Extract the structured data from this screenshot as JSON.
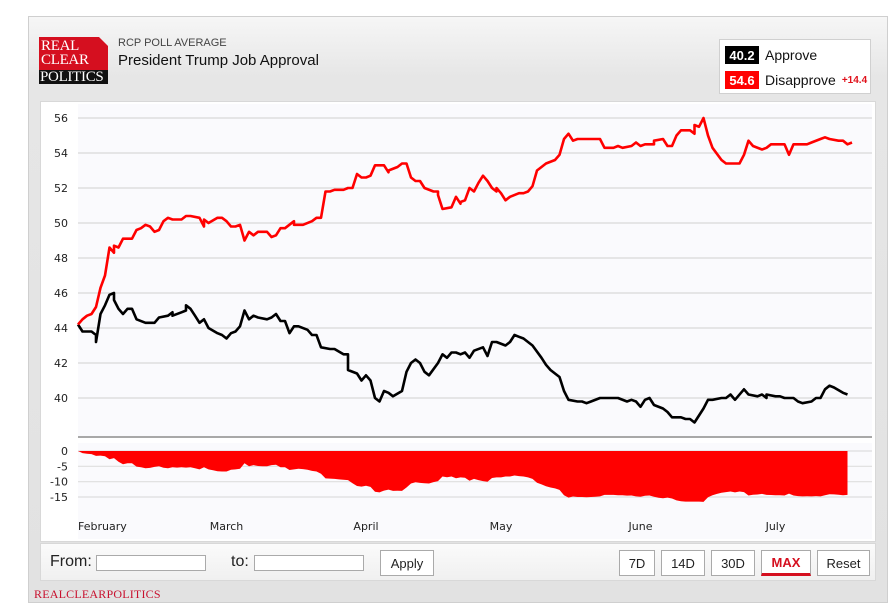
{
  "header": {
    "logo_lines": [
      "REAL",
      "CLEAR",
      "POLITICS"
    ],
    "kicker": "RCP POLL AVERAGE",
    "title": "President Trump Job Approval"
  },
  "legend": {
    "approve": {
      "value": "40.2",
      "label": "Approve",
      "color": "#000000"
    },
    "disapprove": {
      "value": "54.6",
      "label": "Disapprove",
      "color": "#ff0000"
    },
    "spread": "+14.4"
  },
  "controls": {
    "from_label": "From:",
    "from_value": "",
    "to_label": "to:",
    "to_value": "",
    "apply": "Apply",
    "ranges": [
      "7D",
      "14D",
      "30D",
      "MAX"
    ],
    "active_range": "MAX",
    "reset": "Reset"
  },
  "footer": "REALCLEARPOLITICS",
  "chart_data": {
    "type": "line",
    "title": "President Trump Job Approval",
    "x_unit": "days since first data point",
    "xlim": [
      0,
      172
    ],
    "x_ticks": [
      {
        "day": 5,
        "label": "February"
      },
      {
        "day": 33,
        "label": "March"
      },
      {
        "day": 64,
        "label": "April"
      },
      {
        "day": 94,
        "label": "May"
      },
      {
        "day": 125,
        "label": "June"
      },
      {
        "day": 155,
        "label": "July"
      }
    ],
    "main": {
      "ylim": [
        38,
        56.6
      ],
      "y_ticks": [
        56,
        54,
        52,
        50,
        48,
        46,
        44,
        42,
        40
      ],
      "grid": true
    },
    "spread_panel": {
      "ylim": [
        -18,
        0
      ],
      "y_ticks": [
        0,
        -5,
        -10,
        -15
      ],
      "color": "#ff0000"
    },
    "series": [
      {
        "name": "Approve",
        "color": "#000000",
        "points": [
          [
            0,
            44.2
          ],
          [
            1,
            43.8
          ],
          [
            3,
            43.8
          ],
          [
            4,
            43.6
          ],
          [
            4,
            43.2
          ],
          [
            5,
            44.8
          ],
          [
            6,
            45.3
          ],
          [
            7,
            45.9
          ],
          [
            8,
            46.0
          ],
          [
            8,
            45.6
          ],
          [
            9,
            45.1
          ],
          [
            10,
            44.8
          ],
          [
            11,
            45.1
          ],
          [
            12,
            45.1
          ],
          [
            13,
            44.5
          ],
          [
            15,
            44.3
          ],
          [
            17,
            44.3
          ],
          [
            18,
            44.6
          ],
          [
            20,
            44.7
          ],
          [
            21,
            44.9
          ],
          [
            21,
            44.7
          ],
          [
            23,
            44.9
          ],
          [
            24,
            45.0
          ],
          [
            24,
            45.3
          ],
          [
            25,
            45.1
          ],
          [
            26,
            44.7
          ],
          [
            27,
            44.3
          ],
          [
            28,
            44.5
          ],
          [
            29,
            44.0
          ],
          [
            31,
            43.7
          ],
          [
            32,
            43.6
          ],
          [
            33,
            43.4
          ],
          [
            34,
            43.7
          ],
          [
            35,
            43.8
          ],
          [
            36,
            44.1
          ],
          [
            37,
            45.0
          ],
          [
            38,
            44.5
          ],
          [
            39,
            44.7
          ],
          [
            40,
            44.6
          ],
          [
            42,
            44.5
          ],
          [
            43,
            44.6
          ],
          [
            44,
            44.8
          ],
          [
            45,
            44.4
          ],
          [
            46,
            44.4
          ],
          [
            47,
            43.7
          ],
          [
            48,
            44.1
          ],
          [
            49,
            44.1
          ],
          [
            51,
            43.9
          ],
          [
            52,
            43.6
          ],
          [
            53,
            43.6
          ],
          [
            54,
            42.9
          ],
          [
            56,
            42.8
          ],
          [
            57,
            42.8
          ],
          [
            59,
            42.5
          ],
          [
            60,
            42.5
          ],
          [
            60,
            41.6
          ],
          [
            62,
            41.4
          ],
          [
            63,
            41.0
          ],
          [
            64,
            41.3
          ],
          [
            65,
            41.0
          ],
          [
            66,
            40.0
          ],
          [
            67,
            39.8
          ],
          [
            68,
            40.4
          ],
          [
            69,
            40.3
          ],
          [
            70,
            40.1
          ],
          [
            72,
            40.4
          ],
          [
            72,
            40.4
          ],
          [
            73,
            41.5
          ],
          [
            74,
            42.0
          ],
          [
            75,
            42.2
          ],
          [
            76,
            42.0
          ],
          [
            77,
            41.5
          ],
          [
            78,
            41.3
          ],
          [
            80,
            42.0
          ],
          [
            81,
            42.5
          ],
          [
            82,
            42.3
          ],
          [
            83,
            42.6
          ],
          [
            84,
            42.6
          ],
          [
            85,
            42.5
          ],
          [
            86,
            42.6
          ],
          [
            87,
            42.3
          ],
          [
            88,
            42.7
          ],
          [
            90,
            42.9
          ],
          [
            91,
            42.4
          ],
          [
            92,
            43.2
          ],
          [
            93,
            43.2
          ],
          [
            95,
            43.0
          ],
          [
            96,
            43.2
          ],
          [
            97,
            43.6
          ],
          [
            98,
            43.5
          ],
          [
            99,
            43.4
          ],
          [
            100,
            43.2
          ],
          [
            101,
            43.0
          ],
          [
            103,
            42.3
          ],
          [
            104,
            41.9
          ],
          [
            105,
            41.6
          ],
          [
            107,
            41.2
          ],
          [
            108,
            40.4
          ],
          [
            109,
            39.9
          ],
          [
            111,
            39.8
          ],
          [
            112,
            39.8
          ],
          [
            113,
            39.7
          ],
          [
            114,
            39.8
          ],
          [
            116,
            40.0
          ],
          [
            117,
            40.0
          ],
          [
            119,
            40.0
          ],
          [
            120,
            40.0
          ],
          [
            122,
            39.8
          ],
          [
            123,
            39.9
          ],
          [
            124,
            39.8
          ],
          [
            125,
            39.5
          ],
          [
            126,
            39.9
          ],
          [
            127,
            40.0
          ],
          [
            128,
            39.6
          ],
          [
            130,
            39.4
          ],
          [
            131,
            39.2
          ],
          [
            132,
            38.9
          ],
          [
            134,
            38.9
          ],
          [
            135,
            38.8
          ],
          [
            136,
            38.8
          ],
          [
            137,
            38.6
          ],
          [
            139,
            39.4
          ],
          [
            140,
            39.9
          ],
          [
            141,
            39.9
          ],
          [
            143,
            40.0
          ],
          [
            144,
            40.0
          ],
          [
            145,
            40.2
          ],
          [
            146,
            39.9
          ],
          [
            148,
            40.5
          ],
          [
            149,
            40.2
          ],
          [
            151,
            40.1
          ],
          [
            152,
            40.2
          ],
          [
            153,
            40.0
          ],
          [
            153,
            40.2
          ],
          [
            155,
            40.1
          ],
          [
            156,
            40.1
          ],
          [
            157,
            40.0
          ],
          [
            159,
            40.0
          ],
          [
            160,
            39.8
          ],
          [
            161,
            39.7
          ],
          [
            163,
            39.8
          ],
          [
            164,
            40.0
          ],
          [
            165,
            40.0
          ],
          [
            166,
            40.5
          ],
          [
            167,
            40.7
          ],
          [
            168,
            40.6
          ],
          [
            170,
            40.3
          ],
          [
            171,
            40.2
          ]
        ]
      },
      {
        "name": "Disapprove",
        "color": "#ff0000",
        "points": [
          [
            0,
            44.2
          ],
          [
            1,
            44.5
          ],
          [
            2,
            44.7
          ],
          [
            3,
            44.8
          ],
          [
            4,
            45.2
          ],
          [
            5,
            46.3
          ],
          [
            6,
            47.0
          ],
          [
            7,
            48.6
          ],
          [
            8,
            48.3
          ],
          [
            8,
            48.7
          ],
          [
            9,
            48.6
          ],
          [
            10,
            49.1
          ],
          [
            12,
            49.1
          ],
          [
            13,
            49.6
          ],
          [
            14,
            49.7
          ],
          [
            15,
            49.9
          ],
          [
            16,
            49.8
          ],
          [
            17,
            49.5
          ],
          [
            18,
            49.6
          ],
          [
            19,
            50.1
          ],
          [
            20,
            50.3
          ],
          [
            21,
            50.2
          ],
          [
            23,
            50.2
          ],
          [
            24,
            50.4
          ],
          [
            25,
            50.4
          ],
          [
            27,
            50.3
          ],
          [
            28,
            49.8
          ],
          [
            28,
            50.2
          ],
          [
            29,
            50.0
          ],
          [
            31,
            50.3
          ],
          [
            32,
            50.3
          ],
          [
            33,
            50.1
          ],
          [
            34,
            49.8
          ],
          [
            35,
            49.8
          ],
          [
            36,
            49.9
          ],
          [
            37,
            49.0
          ],
          [
            38,
            49.5
          ],
          [
            39,
            49.3
          ],
          [
            40,
            49.5
          ],
          [
            42,
            49.5
          ],
          [
            43,
            49.2
          ],
          [
            44,
            49.3
          ],
          [
            45,
            49.7
          ],
          [
            46,
            49.7
          ],
          [
            48,
            50.1
          ],
          [
            48,
            49.9
          ],
          [
            50,
            49.9
          ],
          [
            52,
            50.1
          ],
          [
            53,
            50.3
          ],
          [
            54,
            50.3
          ],
          [
            55,
            51.8
          ],
          [
            56,
            51.8
          ],
          [
            57,
            51.9
          ],
          [
            59,
            51.9
          ],
          [
            60,
            52.0
          ],
          [
            61,
            52.0
          ],
          [
            62,
            52.8
          ],
          [
            63,
            52.6
          ],
          [
            64,
            52.6
          ],
          [
            65,
            52.7
          ],
          [
            66,
            53.3
          ],
          [
            68,
            53.3
          ],
          [
            69,
            52.9
          ],
          [
            69,
            53.0
          ],
          [
            71,
            53.2
          ],
          [
            72,
            53.4
          ],
          [
            73,
            53.4
          ],
          [
            74,
            52.6
          ],
          [
            75,
            52.4
          ],
          [
            76,
            52.4
          ],
          [
            77,
            52.0
          ],
          [
            79,
            51.8
          ],
          [
            80,
            51.8
          ],
          [
            80,
            51.6
          ],
          [
            81,
            50.8
          ],
          [
            83,
            50.9
          ],
          [
            84,
            51.5
          ],
          [
            85,
            51.1
          ],
          [
            85,
            51.2
          ],
          [
            86,
            51.3
          ],
          [
            87,
            52.0
          ],
          [
            88,
            51.8
          ],
          [
            89,
            52.3
          ],
          [
            90,
            52.7
          ],
          [
            91,
            52.4
          ],
          [
            92,
            52.0
          ],
          [
            93,
            51.8
          ],
          [
            93,
            52.0
          ],
          [
            94,
            51.7
          ],
          [
            95,
            51.3
          ],
          [
            96,
            51.5
          ],
          [
            98,
            51.7
          ],
          [
            99,
            51.7
          ],
          [
            100,
            51.8
          ],
          [
            101,
            52.1
          ],
          [
            102,
            53.0
          ],
          [
            103,
            53.2
          ],
          [
            104,
            53.4
          ],
          [
            106,
            53.6
          ],
          [
            107,
            53.9
          ],
          [
            108,
            54.8
          ],
          [
            109,
            55.1
          ],
          [
            110,
            54.7
          ],
          [
            111,
            54.8
          ],
          [
            114,
            54.8
          ],
          [
            116,
            54.8
          ],
          [
            117,
            54.3
          ],
          [
            119,
            54.3
          ],
          [
            120,
            54.4
          ],
          [
            121,
            54.3
          ],
          [
            123,
            54.4
          ],
          [
            124,
            54.6
          ],
          [
            125,
            54.4
          ],
          [
            126,
            54.5
          ],
          [
            128,
            54.5
          ],
          [
            128,
            54.7
          ],
          [
            130,
            54.8
          ],
          [
            131,
            54.4
          ],
          [
            132,
            54.4
          ],
          [
            133,
            55.0
          ],
          [
            134,
            55.3
          ],
          [
            136,
            55.3
          ],
          [
            137,
            55.1
          ],
          [
            137,
            55.6
          ],
          [
            138,
            55.5
          ],
          [
            139,
            56.0
          ],
          [
            140,
            55.0
          ],
          [
            141,
            54.3
          ],
          [
            143,
            53.6
          ],
          [
            144,
            53.4
          ],
          [
            145,
            53.4
          ],
          [
            147,
            53.4
          ],
          [
            148,
            53.9
          ],
          [
            149,
            54.7
          ],
          [
            150,
            54.4
          ],
          [
            152,
            54.2
          ],
          [
            153,
            54.3
          ],
          [
            154,
            54.5
          ],
          [
            156,
            54.5
          ],
          [
            157,
            54.5
          ],
          [
            158,
            53.9
          ],
          [
            159,
            54.5
          ],
          [
            160,
            54.5
          ],
          [
            162,
            54.5
          ],
          [
            163,
            54.6
          ],
          [
            165,
            54.8
          ],
          [
            166,
            54.9
          ],
          [
            167,
            54.8
          ],
          [
            169,
            54.7
          ],
          [
            170,
            54.7
          ],
          [
            171,
            54.5
          ],
          [
            172,
            54.6
          ]
        ]
      }
    ]
  }
}
